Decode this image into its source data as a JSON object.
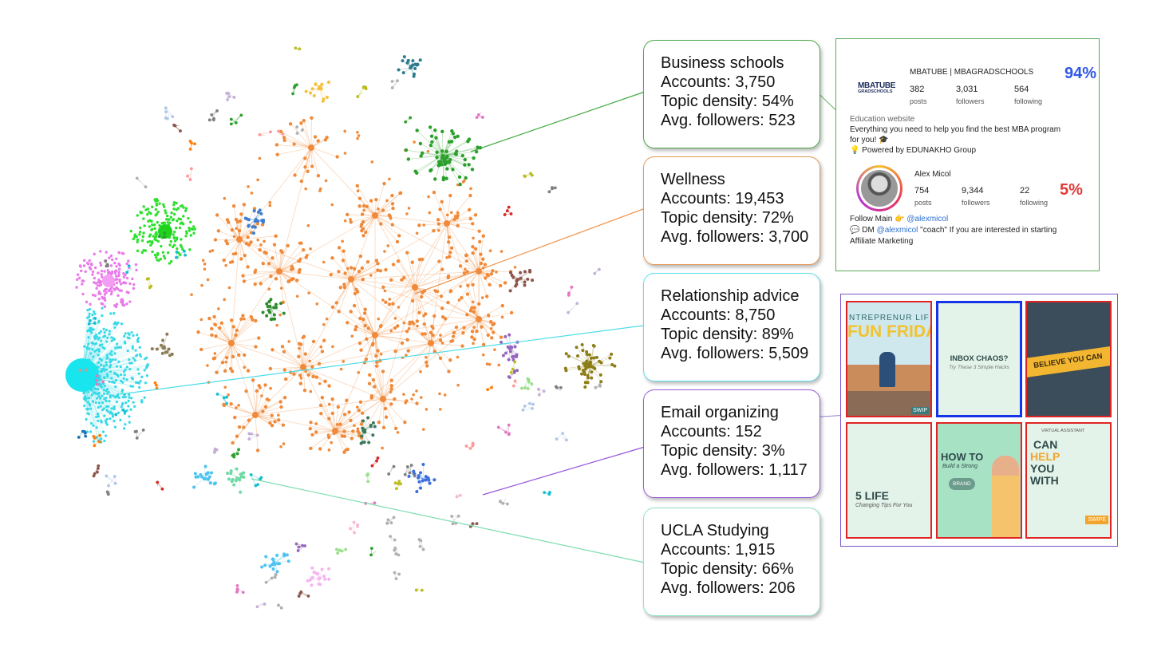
{
  "colors": {
    "wellness": "#f08a3a",
    "business": "#2ca02c",
    "relationship": "#37d9e6",
    "email": "#8b3fd6",
    "ucla": "#6fd9a6",
    "lime": "#2ee02e",
    "pink": "#e97ae9"
  },
  "communities": [
    {
      "key": "business",
      "title": "Business schools",
      "accounts": "Accounts: 3,750",
      "density": "Topic density: 54%",
      "followers": "Avg. followers: 523"
    },
    {
      "key": "wellness",
      "title": "Wellness",
      "accounts": "Accounts: 19,453",
      "density": "Topic density: 72%",
      "followers": "Avg. followers: 3,700"
    },
    {
      "key": "relationship",
      "title": "Relationship advice",
      "accounts": "Accounts: 8,750",
      "density": "Topic density: 89%",
      "followers": "Avg. followers: 5,509"
    },
    {
      "key": "email",
      "title": "Email organizing",
      "accounts": "Accounts: 152",
      "density": "Topic density: 3%",
      "followers": "Avg. followers: 1,117"
    },
    {
      "key": "ucla",
      "title": "UCLA Studying",
      "accounts": "Accounts: 1,915",
      "density": "Topic density: 66%",
      "followers": "Avg. followers: 206"
    }
  ],
  "profile1": {
    "logo_line1": "MBATUBE",
    "logo_line2": "GRADSCHOOLS",
    "name": "MBATUBE | MBAGRADSCHOOLS",
    "posts": "382",
    "posts_label": "posts",
    "followers": "3,031",
    "followers_label": "followers",
    "following": "564",
    "following_label": "following",
    "category": "Education website",
    "bio1": "Everything you need to help you find the best MBA program",
    "bio2": "for you! 🎓",
    "bio3": "💡 Powered by EDUNAKHO Group",
    "percent": "94%"
  },
  "profile2": {
    "name": "Alex Micol",
    "posts": "754",
    "posts_label": "posts",
    "followers": "9,344",
    "followers_label": "followers",
    "following": "22",
    "following_label": "following",
    "bio1_prefix": "Follow Main 👉 ",
    "bio1_handle": "@alexmicol",
    "bio2_prefix": "💬 DM ",
    "bio2_handle": "@alexmicol",
    "bio2_suffix": " \"coach\" If you are interested in starting",
    "bio3": "Affiliate Marketing",
    "percent": "5%"
  },
  "posts_grid": {
    "t1_top": "NTREPRENUR LIF",
    "t1_main": "FUN FRIDAY",
    "t1_corner": "SWIP",
    "t2_main": "INBOX CHAOS?",
    "t2_sub": "Try These 3 Simple Hacks",
    "t3_main": "BELIEVE YOU CAN",
    "t4_main": "5 LIFE",
    "t4_sub": "Changing Tips For You",
    "t5_main": "HOW TO",
    "t5_sub": "Build a Strong",
    "t5_badge": "BRAND",
    "t6_top": "VIRTUAL ASSISTANT",
    "t6_l1": "CAN",
    "t6_l2": "HELP",
    "t6_l3": "YOU",
    "t6_l4": "WITH",
    "t6_corner": "SWIPE"
  }
}
